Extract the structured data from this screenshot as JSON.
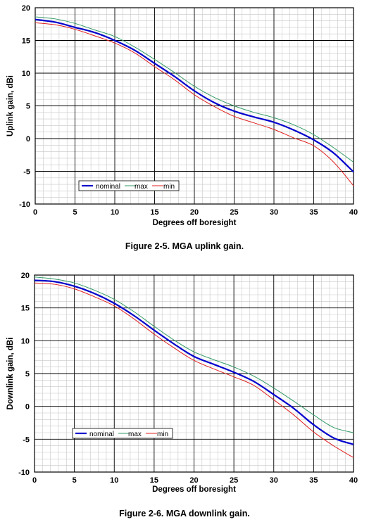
{
  "chart_data": [
    {
      "type": "line",
      "caption": "Figure 2-5.  MGA uplink gain.",
      "xlabel": "Degrees off boresight",
      "ylabel": "Uplink gain, dBi",
      "xlim": [
        0,
        40
      ],
      "ylim": [
        -10,
        20
      ],
      "xticks": [
        0,
        5,
        10,
        15,
        20,
        25,
        30,
        35,
        40
      ],
      "yticks": [
        -10,
        -5,
        0,
        5,
        10,
        15,
        20
      ],
      "grid": true,
      "legend_position": "bottom-left",
      "x": [
        0,
        2.5,
        5,
        7.5,
        10,
        12.5,
        15,
        17.5,
        20,
        22.5,
        25,
        27.5,
        30,
        32.5,
        35,
        37.5,
        40
      ],
      "series": [
        {
          "name": "nominal",
          "color": "#0000cc",
          "width": 2.2,
          "values": [
            18.2,
            17.8,
            17.0,
            16.2,
            15.0,
            13.5,
            11.5,
            9.5,
            7.3,
            5.5,
            4.2,
            3.3,
            2.5,
            1.3,
            -0.2,
            -2.2,
            -5.1
          ]
        },
        {
          "name": "max",
          "color": "#339966",
          "width": 1,
          "values": [
            18.6,
            18.3,
            17.6,
            16.6,
            15.6,
            14.0,
            12.1,
            10.1,
            8.0,
            6.3,
            5.0,
            4.0,
            3.2,
            2.1,
            0.6,
            -1.4,
            -3.6
          ]
        },
        {
          "name": "min",
          "color": "#e02020",
          "width": 1,
          "values": [
            17.7,
            17.4,
            16.7,
            15.7,
            14.6,
            13.1,
            11.0,
            9.0,
            6.7,
            4.9,
            3.4,
            2.4,
            1.4,
            0.1,
            -1.1,
            -3.6,
            -7.2
          ]
        }
      ]
    },
    {
      "type": "line",
      "caption": "Figure 2-6.  MGA downlink gain.",
      "xlabel": "Degrees off boresight",
      "ylabel": "Downlink gain, dBi",
      "xlim": [
        0,
        40
      ],
      "ylim": [
        -10,
        20
      ],
      "xticks": [
        0,
        5,
        10,
        15,
        20,
        25,
        30,
        35,
        40
      ],
      "yticks": [
        -10,
        -5,
        0,
        5,
        10,
        15,
        20
      ],
      "grid": true,
      "legend_position": "bottom-left",
      "x": [
        0,
        2.5,
        5,
        7.5,
        10,
        12.5,
        15,
        17.5,
        20,
        22.5,
        25,
        27.5,
        30,
        32.5,
        35,
        37.5,
        40
      ],
      "series": [
        {
          "name": "nominal",
          "color": "#0000cc",
          "width": 2.2,
          "values": [
            19.2,
            19.0,
            18.3,
            17.2,
            15.7,
            13.8,
            11.6,
            9.5,
            7.6,
            6.4,
            5.2,
            3.8,
            1.8,
            -0.3,
            -2.8,
            -4.8,
            -5.8
          ]
        },
        {
          "name": "max",
          "color": "#339966",
          "width": 1,
          "values": [
            19.7,
            19.4,
            18.8,
            17.7,
            16.3,
            14.4,
            12.2,
            10.1,
            8.3,
            7.1,
            6.0,
            4.6,
            2.8,
            0.8,
            -1.3,
            -3.2,
            -4.0
          ]
        },
        {
          "name": "min",
          "color": "#e02020",
          "width": 1,
          "values": [
            18.8,
            18.6,
            17.9,
            16.7,
            15.3,
            13.3,
            11.0,
            8.9,
            7.0,
            5.7,
            4.5,
            3.2,
            1.0,
            -1.3,
            -3.9,
            -6.0,
            -7.8
          ]
        }
      ]
    }
  ]
}
